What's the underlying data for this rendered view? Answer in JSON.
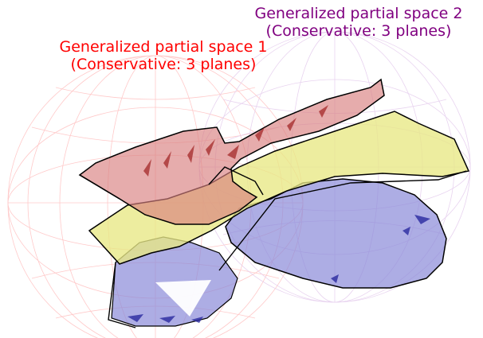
{
  "labels": {
    "space1": {
      "line1": "Generalized partial space 1",
      "line2": "(Conservative: 3 planes)",
      "color": "#ff0000"
    },
    "space2": {
      "line1": "Generalized partial space 2",
      "line2": "(Conservative: 3 planes)",
      "color": "#800080"
    }
  },
  "colors": {
    "sphere1_wire": "#ffb0b0",
    "sphere2_wire": "#e0c0e8",
    "red_plane": "#d98080",
    "yellow_plane": "#e6e680",
    "blue_plane": "#8080d9",
    "outline": "#000000"
  }
}
